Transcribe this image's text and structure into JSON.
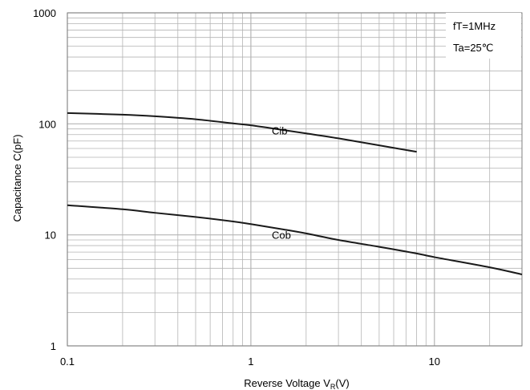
{
  "chart_data": {
    "type": "line",
    "x_scale": "log",
    "y_scale": "log",
    "xlim": [
      0.1,
      30
    ],
    "ylim": [
      1,
      1000
    ],
    "grid": true,
    "xlabel_main": "Reverse Voltage  V",
    "xlabel_sub": "R",
    "xlabel_unit": "(V)",
    "ylabel": "Capacitance  C(pF)",
    "x_tick_labels": [
      {
        "value": 0.1,
        "label": "0.1"
      },
      {
        "value": 1,
        "label": "1"
      },
      {
        "value": 10,
        "label": "10"
      }
    ],
    "y_tick_labels": [
      {
        "value": 1,
        "label": "1"
      },
      {
        "value": 10,
        "label": "10"
      },
      {
        "value": 100,
        "label": "100"
      },
      {
        "value": 1000,
        "label": "1000"
      }
    ],
    "conditions": [
      "fT=1MHz",
      "Ta=25℃"
    ],
    "series": [
      {
        "name": "Cib",
        "label_at": [
          1.3,
          80
        ],
        "x": [
          0.1,
          0.2,
          0.3,
          0.5,
          0.8,
          1,
          1.5,
          2,
          3,
          5,
          8
        ],
        "y": [
          125,
          121,
          117,
          110,
          101,
          97,
          88,
          82,
          74,
          64,
          56
        ]
      },
      {
        "name": "Cob",
        "label_at": [
          1.3,
          9.2
        ],
        "x": [
          0.1,
          0.2,
          0.3,
          0.5,
          0.8,
          1,
          1.5,
          2,
          3,
          5,
          8,
          10,
          20,
          30
        ],
        "y": [
          18.5,
          17,
          15.8,
          14.5,
          13.2,
          12.5,
          11.2,
          10.3,
          9,
          7.8,
          6.8,
          6.3,
          5.1,
          4.4
        ]
      }
    ],
    "colors": {
      "line": "#1a1a1a",
      "grid": "#b4b4b4",
      "frame": "#7f7f7f"
    }
  }
}
